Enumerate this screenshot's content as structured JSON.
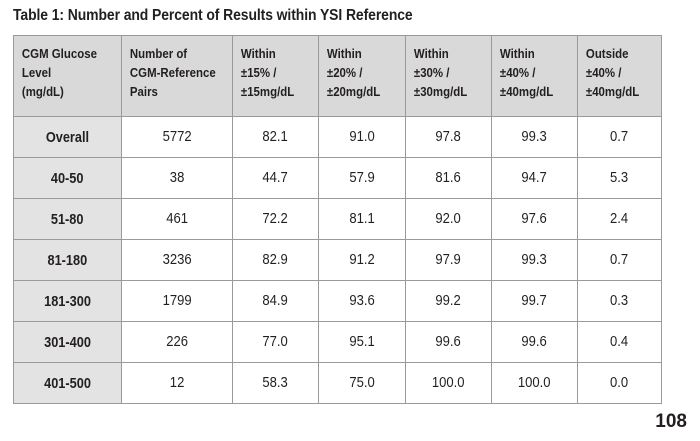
{
  "caption": "Table 1: Number and Percent of Results within YSI Reference",
  "headers": [
    [
      "CGM Glucose",
      "Level",
      "(mg/dL)"
    ],
    [
      "Number of",
      "CGM-Reference",
      "Pairs"
    ],
    [
      "Within",
      "±15% /",
      "±15mg/dL"
    ],
    [
      "Within",
      "±20% /",
      "±20mg/dL"
    ],
    [
      "Within",
      "±30% /",
      "±30mg/dL"
    ],
    [
      "Within",
      "±40% /",
      "±40mg/dL"
    ],
    [
      "Outside",
      "±40% /",
      "±40mg/dL"
    ]
  ],
  "rows": [
    [
      "Overall",
      "5772",
      "82.1",
      "91.0",
      "97.8",
      "99.3",
      "0.7"
    ],
    [
      "40-50",
      "38",
      "44.7",
      "57.9",
      "81.6",
      "94.7",
      "5.3"
    ],
    [
      "51-80",
      "461",
      "72.2",
      "81.1",
      "92.0",
      "97.6",
      "2.4"
    ],
    [
      "81-180",
      "3236",
      "82.9",
      "91.2",
      "97.9",
      "99.3",
      "0.7"
    ],
    [
      "181-300",
      "1799",
      "84.9",
      "93.6",
      "99.2",
      "99.7",
      "0.3"
    ],
    [
      "301-400",
      "226",
      "77.0",
      "95.1",
      "99.6",
      "99.6",
      "0.4"
    ],
    [
      "401-500",
      "12",
      "58.3",
      "75.0",
      "100.0",
      "100.0",
      "0.0"
    ]
  ],
  "page_number": "108"
}
